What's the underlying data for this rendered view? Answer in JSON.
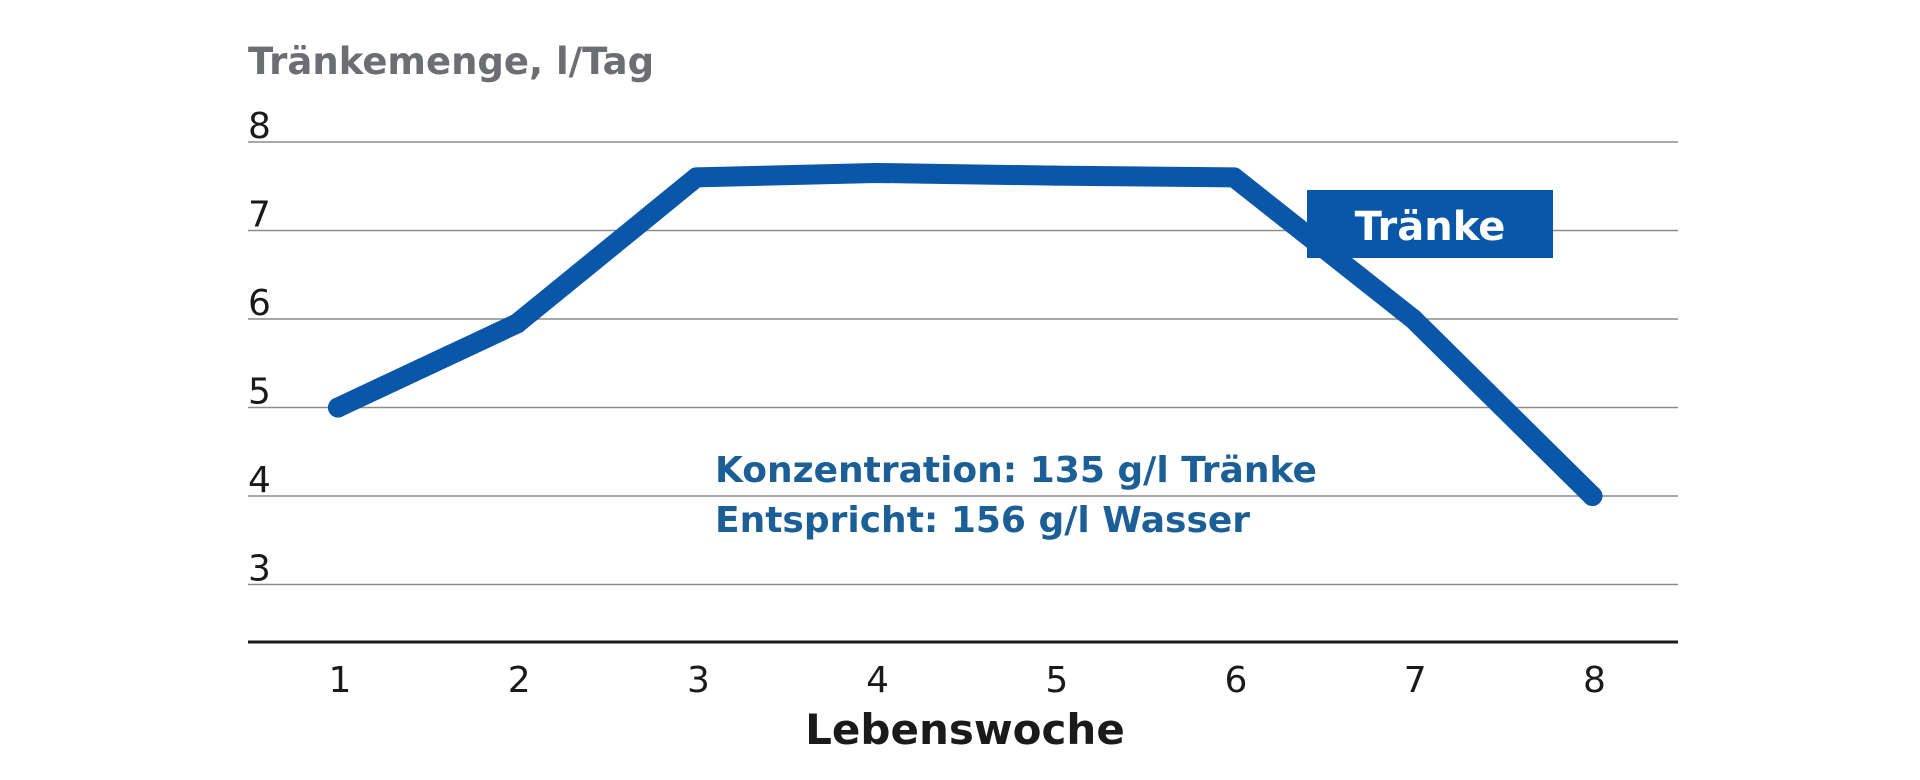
{
  "chart_data": {
    "type": "line",
    "ylabel": "Tränkemenge, l/Tag",
    "xlabel": "Lebenswoche",
    "x": [
      1,
      2,
      3,
      4,
      5,
      6,
      7,
      8
    ],
    "ylim": [
      3,
      8
    ],
    "yticks": [
      8,
      7,
      6,
      5,
      4,
      3
    ],
    "grid": true,
    "series": [
      {
        "name": "Tränke",
        "values": [
          5.0,
          5.95,
          7.6,
          7.65,
          7.62,
          7.6,
          6.0,
          4.0
        ]
      }
    ],
    "annotations": [
      "Konzentration: 135 g/l Tränke",
      "Entspricht: 156 g/l Wasser"
    ],
    "colors": {
      "line": "#0a56a8",
      "annotation": "#1b5f96",
      "grid": "#8c8c8c"
    }
  }
}
